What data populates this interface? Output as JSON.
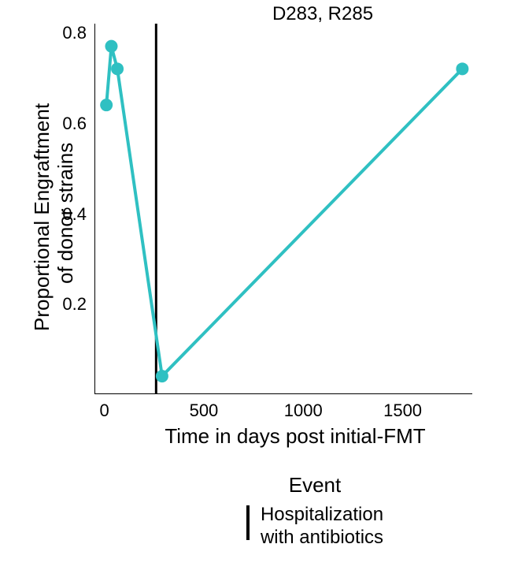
{
  "chart": {
    "type": "line",
    "title": "D283, R285",
    "title_fontsize": 24,
    "xlabel": "Time in days post initial-FMT",
    "ylabel_line1": "Proportional Engraftment",
    "ylabel_line2": "of donor strains",
    "label_fontsize": 26,
    "xlim": [
      -50,
      1850
    ],
    "ylim": [
      0.0,
      0.82
    ],
    "x_ticks": [
      0,
      500,
      1000,
      1500
    ],
    "y_ticks": [
      0.2,
      0.4,
      0.6,
      0.8
    ],
    "background_color": "#ffffff",
    "axis_color": "#000000",
    "series": {
      "x": [
        10,
        35,
        65,
        290,
        1800
      ],
      "y": [
        0.64,
        0.77,
        0.72,
        0.04,
        0.72
      ],
      "color": "#2fc0c2",
      "line_width": 4,
      "marker_radius": 8
    },
    "event_vline": {
      "x": 260,
      "color": "#000000",
      "width": 3
    }
  },
  "legend": {
    "title": "Event",
    "item_label_line1": "Hospitalization",
    "item_label_line2": "with antibiotics",
    "mark_color": "#000000"
  }
}
